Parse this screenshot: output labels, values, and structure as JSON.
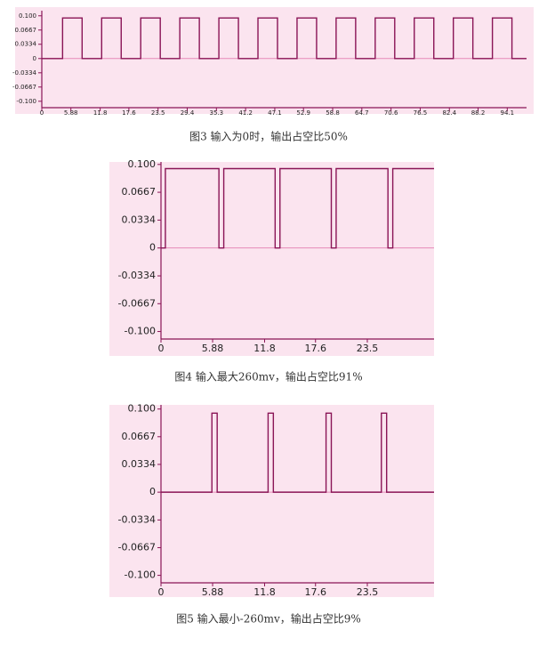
{
  "chart_data": [
    {
      "type": "line",
      "caption": "图3 输入为0时，输出占空比50%",
      "x": [
        0,
        4.2,
        4.2,
        8.15,
        8.15,
        12.1,
        12.1,
        16.05,
        16.05,
        20.0,
        20.0,
        23.95,
        23.95,
        27.9,
        27.9,
        31.85,
        31.85,
        35.8,
        35.8,
        39.75,
        39.75,
        43.7,
        43.7,
        47.65,
        47.65,
        51.6,
        51.6,
        55.55,
        55.55,
        59.5,
        59.5,
        63.45,
        63.45,
        67.4,
        67.4,
        71.35,
        71.35,
        75.3,
        75.3,
        79.25,
        79.25,
        83.2,
        83.2,
        87.15,
        87.15,
        91.1,
        91.1,
        95.05,
        95.05,
        98
      ],
      "values": [
        0,
        0,
        0.095,
        0.095,
        0,
        0,
        0.095,
        0.095,
        0,
        0,
        0.095,
        0.095,
        0,
        0,
        0.095,
        0.095,
        0,
        0,
        0.095,
        0.095,
        0,
        0,
        0.095,
        0.095,
        0,
        0,
        0.095,
        0.095,
        0,
        0,
        0.095,
        0.095,
        0,
        0,
        0.095,
        0.095,
        0,
        0,
        0.095,
        0.095,
        0,
        0,
        0.095,
        0.095,
        0,
        0,
        0.095,
        0.095,
        0,
        0
      ],
      "color": "#8a1456",
      "xlim": [
        0,
        98
      ],
      "ylim": [
        -0.115,
        0.112
      ],
      "xticks": [
        0,
        5.88,
        11.8,
        17.6,
        23.5,
        29.4,
        35.3,
        41.2,
        47.1,
        52.9,
        58.8,
        64.7,
        70.6,
        76.5,
        82.4,
        88.2,
        94.1
      ],
      "yticks": [
        {
          "value": 0.1,
          "label": "0.100"
        },
        0.0667,
        0.0334,
        0,
        -0.0334,
        -0.0667,
        {
          "value": -0.1,
          "label": "-0.100"
        }
      ]
    },
    {
      "type": "line",
      "caption": "图4 输入最大260mv，输出占空比91%",
      "x": [
        0,
        0.5,
        0.5,
        6.6,
        6.6,
        7.15,
        7.15,
        13.0,
        13.0,
        13.55,
        13.55,
        19.4,
        19.4,
        19.95,
        19.95,
        25.85,
        25.85,
        26.4,
        26.4,
        31.1
      ],
      "values": [
        0,
        0,
        0.095,
        0.095,
        0,
        0,
        0.095,
        0.095,
        0,
        0,
        0.095,
        0.095,
        0,
        0,
        0.095,
        0.095,
        0,
        0,
        0.095,
        0.095
      ],
      "color": "#8a1456",
      "xlim": [
        0,
        31.1
      ],
      "ylim": [
        -0.109,
        0.103
      ],
      "xticks": [
        0,
        5.88,
        11.8,
        17.6,
        23.5
      ],
      "yticks": [
        {
          "value": 0.1,
          "label": "0.100"
        },
        0.0667,
        0.0334,
        0,
        -0.0334,
        -0.0667,
        {
          "value": -0.1,
          "label": "-0.100"
        }
      ]
    },
    {
      "type": "line",
      "caption": "图5 输入最小-260mv，输出占空比9%",
      "x": [
        0,
        5.8,
        5.8,
        6.4,
        6.4,
        12.2,
        12.2,
        12.8,
        12.8,
        18.8,
        18.8,
        19.4,
        19.4,
        25.1,
        25.1,
        25.7,
        25.7,
        31.1
      ],
      "values": [
        0,
        0,
        0.095,
        0.095,
        0,
        0,
        0.095,
        0.095,
        0,
        0,
        0.095,
        0.095,
        0,
        0,
        0.095,
        0.095,
        0,
        0
      ],
      "color": "#8a1456",
      "xlim": [
        0,
        31.1
      ],
      "ylim": [
        -0.109,
        0.105
      ],
      "xticks": [
        0,
        5.88,
        11.8,
        17.6,
        23.5
      ],
      "yticks": [
        {
          "value": 0.1,
          "label": "0.100"
        },
        0.0667,
        0.0334,
        0,
        -0.0334,
        -0.0667,
        {
          "value": -0.1,
          "label": "-0.100"
        }
      ]
    }
  ]
}
